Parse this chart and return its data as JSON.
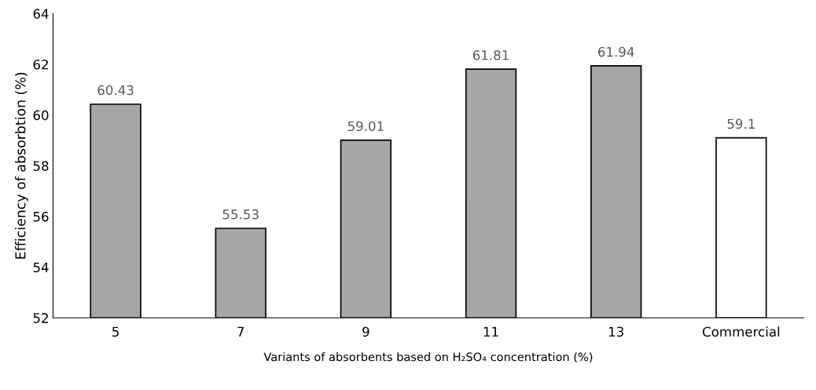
{
  "chart_data": {
    "type": "bar",
    "xlabel": "Variants of absorbents based on H₂SO₄ concentration (%)",
    "ylabel": "Efficiency of absorbtion (%)",
    "categories": [
      "5",
      "7",
      "9",
      "11",
      "13",
      "Commercial"
    ],
    "values": [
      60.43,
      55.53,
      59.01,
      61.81,
      61.94,
      59.1
    ],
    "colors": [
      "#a6a6a6",
      "#a6a6a6",
      "#a6a6a6",
      "#a6a6a6",
      "#a6a6a6",
      "#ffffff"
    ],
    "value_labels": [
      "60.43",
      "55.53",
      "59.01",
      "61.81",
      "61.94",
      "59.1"
    ],
    "ylim": [
      52,
      64
    ],
    "yticks": [
      52,
      54,
      56,
      58,
      60,
      62,
      64
    ],
    "grid": false,
    "legend": false
  }
}
